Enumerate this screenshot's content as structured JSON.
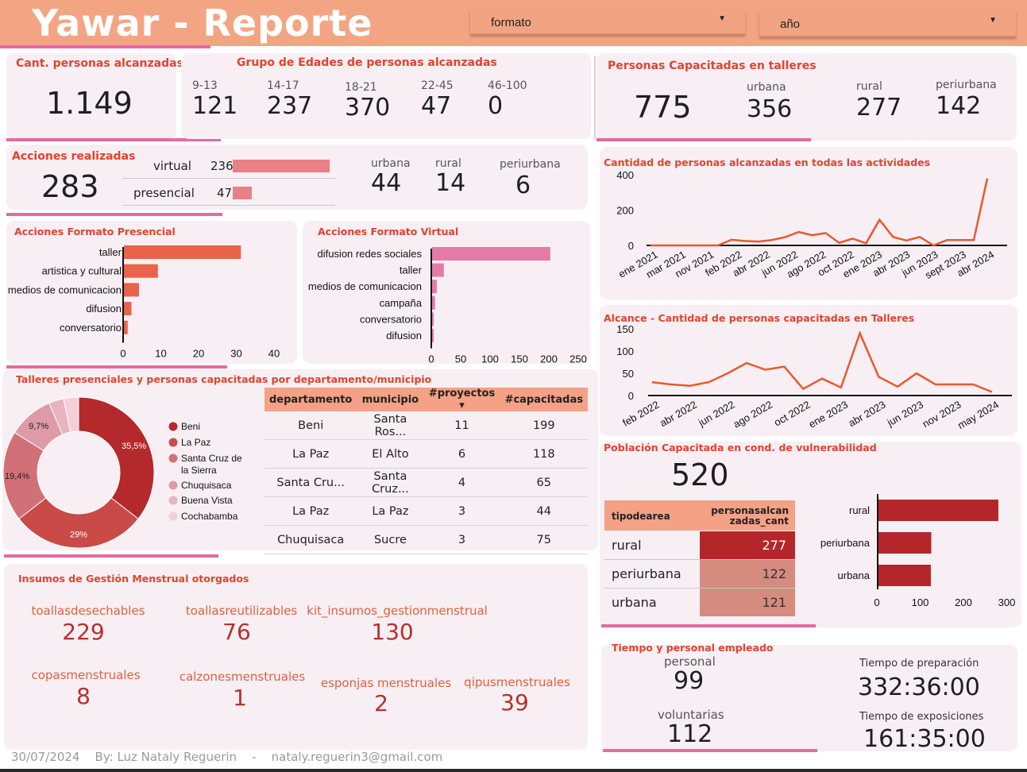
{
  "header": {
    "title": "Yawar - Reporte",
    "dropdown1": "formato",
    "dropdown2": "año"
  },
  "reach": {
    "title": "Cant. personas alcanzadas",
    "value": "1.149"
  },
  "ages": {
    "title": "Grupo de Edades de personas alcanzadas",
    "groups": [
      {
        "label": "9-13",
        "value": "121"
      },
      {
        "label": "14-17",
        "value": "237"
      },
      {
        "label": "18-21",
        "value": "370"
      },
      {
        "label": "22-45",
        "value": "47"
      },
      {
        "label": "46-100",
        "value": "0"
      }
    ]
  },
  "trained": {
    "title": "Personas Capacitadas en talleres",
    "value": "775",
    "zones": [
      {
        "label": "urbana",
        "value": "356"
      },
      {
        "label": "rural",
        "value": "277"
      },
      {
        "label": "periurbana",
        "value": "142"
      }
    ]
  },
  "actions": {
    "title": "Acciones realizadas",
    "value": "283",
    "formats": [
      {
        "label": "virtual",
        "value": "236",
        "bar": 236
      },
      {
        "label": "presencial",
        "value": "47",
        "bar": 47
      }
    ],
    "zones": [
      {
        "label": "urbana",
        "value": "44"
      },
      {
        "label": "rural",
        "value": "14"
      },
      {
        "label": "periurbana",
        "value": "6"
      }
    ]
  },
  "presencial": {
    "title": "Acciones Formato Presencial",
    "ticks": [
      "0",
      "10",
      "20",
      "30",
      "40"
    ],
    "color": "#e8634a",
    "bars": [
      {
        "label": "taller",
        "value": 31
      },
      {
        "label": "artistica y cultural",
        "value": 9
      },
      {
        "label": "medios de comunicacion",
        "value": 4
      },
      {
        "label": "difusion",
        "value": 2
      },
      {
        "label": "conversatorio",
        "value": 1
      }
    ]
  },
  "virtual": {
    "title": "Acciones Formato Virtual",
    "ticks": [
      "0",
      "50",
      "100",
      "150",
      "200",
      "250"
    ],
    "color": "#e47aa6",
    "bars": [
      {
        "label": "difusion redes sociales",
        "value": 201
      },
      {
        "label": "taller",
        "value": 20
      },
      {
        "label": "medios de comunicacion",
        "value": 8
      },
      {
        "label": "campaña",
        "value": 5
      },
      {
        "label": "conversatorio",
        "value": 1
      },
      {
        "label": "difusion",
        "value": 1
      }
    ]
  },
  "line1": {
    "title": "Cantidad de personas alcanzadas en todas las actividades",
    "yticks": [
      "400",
      "200",
      "0"
    ],
    "xticks": [
      "ene 2021",
      "mar 2021",
      "nov 2021",
      "feb 2022",
      "abr 2022",
      "jun 2022",
      "ago 2022",
      "oct 2022",
      "ene 2023",
      "abr 2023",
      "jun 2023",
      "sept 2023",
      "abr 2024"
    ],
    "values": [
      0,
      0,
      0,
      0,
      0,
      0,
      32,
      25,
      22,
      30,
      47,
      76,
      58,
      70,
      15,
      38,
      12,
      145,
      48,
      28,
      48,
      0,
      30,
      30,
      30,
      380
    ]
  },
  "line2": {
    "title": "Alcance - Cantidad de personas capacitadas en Talleres",
    "yticks": [
      "150",
      "100",
      "50",
      "0"
    ],
    "xticks": [
      "feb 2022",
      "abr 2022",
      "jun 2022",
      "ago 2022",
      "oct 2022",
      "ene 2023",
      "abr 2023",
      "jun 2023",
      "nov 2023",
      "may 2024"
    ],
    "values": [
      30,
      25,
      22,
      30,
      50,
      73,
      58,
      65,
      15,
      38,
      18,
      140,
      42,
      20,
      50,
      25,
      25,
      25,
      8
    ]
  },
  "donut": {
    "title": "Talleres presenciales y personas capacitadas por departamento/municipio",
    "segments": [
      {
        "name": "Beni",
        "pct": 35.5,
        "label": "35,5%",
        "color": "#b3292c"
      },
      {
        "name": "La Paz",
        "pct": 29,
        "label": "29%",
        "color": "#c94a47"
      },
      {
        "name": "Santa Cruz de la Sierra",
        "pct": 19.4,
        "label": "19,4%",
        "color": "#d17077"
      },
      {
        "name": "Chuquisaca",
        "pct": 9.7,
        "label": "9,7%",
        "color": "#de9aa6"
      },
      {
        "name": "Buena Vista",
        "pct": 3.2,
        "label": "",
        "color": "#e8b4bf"
      },
      {
        "name": "Cochabamba",
        "pct": 3.2,
        "label": "",
        "color": "#f2d0d6"
      }
    ]
  },
  "table": {
    "headers": [
      "departamento",
      "municipio",
      "#proyectos",
      "#capacitadas"
    ],
    "rows": [
      [
        "Beni",
        "Santa Ros...",
        "11",
        "199"
      ],
      [
        "La Paz",
        "El Alto",
        "6",
        "118"
      ],
      [
        "Santa Cru...",
        "Santa Cruz...",
        "4",
        "65"
      ],
      [
        "La Paz",
        "La Paz",
        "3",
        "44"
      ],
      [
        "Chuquisaca",
        "Sucre",
        "3",
        "75"
      ]
    ]
  },
  "vuln": {
    "title": "Población Capacitada en cond. de  vulnerabilidad",
    "value": "520",
    "col1": "tipodearea",
    "col2": "personasalcanzadas_cant",
    "rows": [
      {
        "label": "rural",
        "value": "277",
        "bar": 277
      },
      {
        "label": "periurbana",
        "value": "122",
        "bar": 122
      },
      {
        "label": "urbana",
        "value": "121",
        "bar": 121
      }
    ],
    "ticks": [
      "0",
      "100",
      "200",
      "300"
    ]
  },
  "insumos": {
    "title": "Insumos de Gestión Menstrual otorgados",
    "items": [
      {
        "label": "toallasdesechables",
        "value": "229"
      },
      {
        "label": "toallasreutilizables",
        "value": "76"
      },
      {
        "label": "kit_insumos_gestionmenstrual",
        "value": "130"
      },
      {
        "label": "copasmenstruales",
        "value": "8"
      },
      {
        "label": "calzonesmenstruales",
        "value": "1"
      },
      {
        "label": "esponjas menstruales",
        "value": "2"
      },
      {
        "label": "qipusmenstruales",
        "value": "39"
      }
    ]
  },
  "tiempo": {
    "title": "Tiempo y personal empleado",
    "personal_label": "personal",
    "personal_value": "99",
    "volunt_label": "voluntarias",
    "volunt_value": "112",
    "prep_label": "Tiempo de preparación",
    "prep_value": "332:36:00",
    "expo_label": "Tiempo de exposiciones",
    "expo_value": "161:35:00"
  },
  "footer": {
    "date": "30/07/2024",
    "by": "By: Luz Nataly Reguerin",
    "sep": "-",
    "email": "nataly.reguerin3@gmail.com"
  }
}
